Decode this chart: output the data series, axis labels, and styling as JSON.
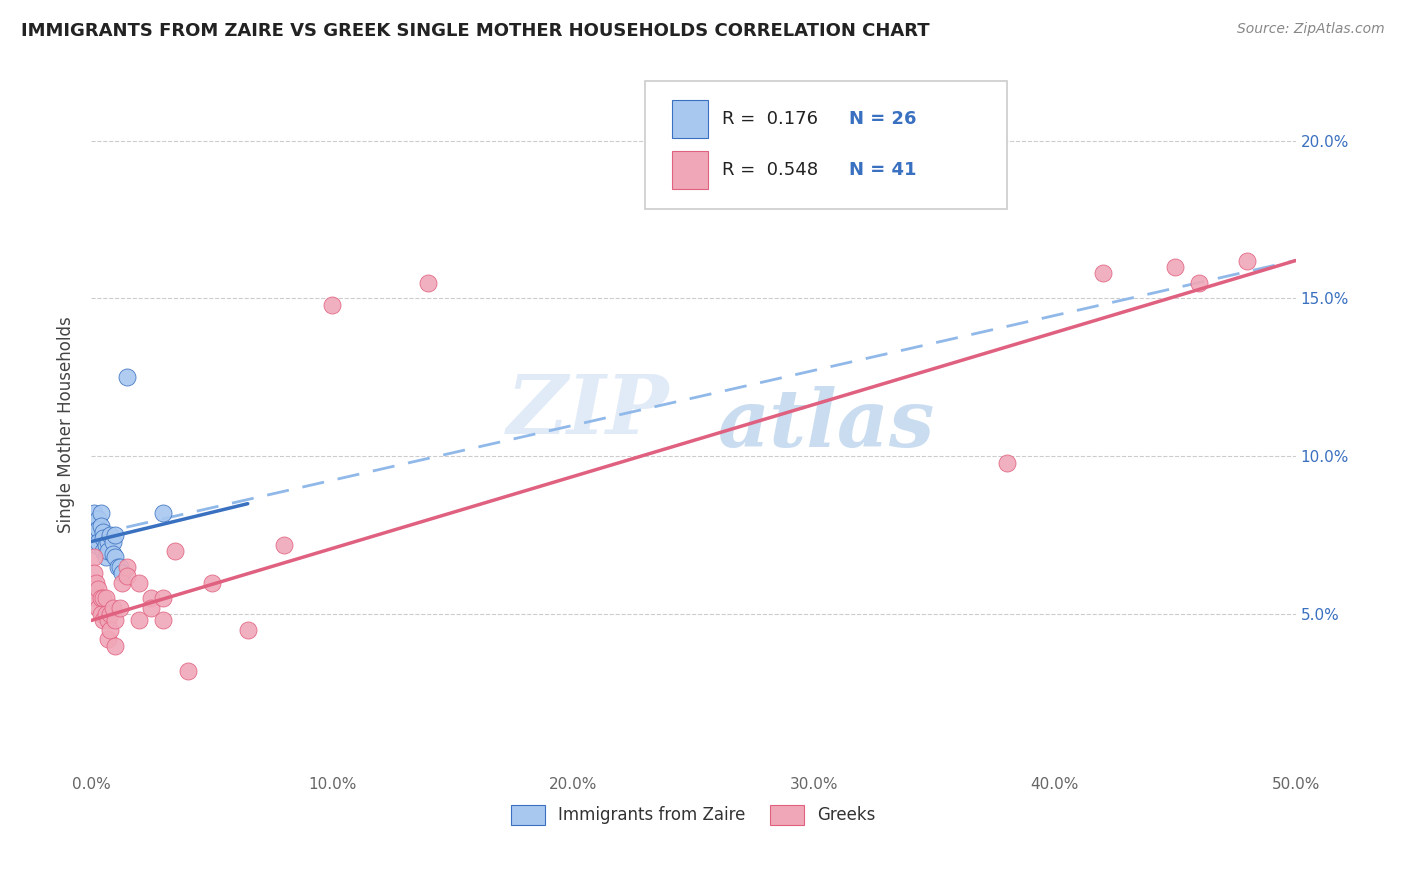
{
  "title": "IMMIGRANTS FROM ZAIRE VS GREEK SINGLE MOTHER HOUSEHOLDS CORRELATION CHART",
  "source": "Source: ZipAtlas.com",
  "ylabel": "Single Mother Households",
  "legend_r1": "R =  0.176",
  "legend_n1": "N = 26",
  "legend_r2": "R =  0.548",
  "legend_n2": "N = 41",
  "color_blue": "#a8c8f0",
  "color_pink": "#f0a8b8",
  "color_line_blue": "#3a70c0",
  "color_line_pink": "#e06080",
  "color_dashed": "#90b8e8",
  "watermark_zip": "ZIP",
  "watermark_atlas": "atlas",
  "xmin": 0.0,
  "xmax": 0.5,
  "ymin": 0.0,
  "ymax": 0.22,
  "blue_points_x": [
    0.001,
    0.001,
    0.002,
    0.002,
    0.003,
    0.003,
    0.003,
    0.004,
    0.004,
    0.005,
    0.005,
    0.005,
    0.006,
    0.006,
    0.007,
    0.007,
    0.008,
    0.009,
    0.009,
    0.01,
    0.01,
    0.011,
    0.012,
    0.013,
    0.015,
    0.03
  ],
  "blue_points_y": [
    0.082,
    0.078,
    0.075,
    0.072,
    0.08,
    0.077,
    0.073,
    0.082,
    0.078,
    0.076,
    0.074,
    0.07,
    0.072,
    0.068,
    0.073,
    0.07,
    0.075,
    0.073,
    0.069,
    0.075,
    0.068,
    0.065,
    0.065,
    0.063,
    0.125,
    0.082
  ],
  "pink_points_x": [
    0.001,
    0.001,
    0.002,
    0.002,
    0.003,
    0.003,
    0.004,
    0.004,
    0.005,
    0.005,
    0.006,
    0.006,
    0.007,
    0.007,
    0.008,
    0.008,
    0.009,
    0.01,
    0.01,
    0.012,
    0.013,
    0.015,
    0.015,
    0.02,
    0.02,
    0.025,
    0.025,
    0.03,
    0.03,
    0.035,
    0.04,
    0.05,
    0.065,
    0.08,
    0.1,
    0.14,
    0.38,
    0.42,
    0.45,
    0.46,
    0.48
  ],
  "pink_points_y": [
    0.068,
    0.063,
    0.06,
    0.055,
    0.058,
    0.052,
    0.055,
    0.05,
    0.055,
    0.048,
    0.055,
    0.05,
    0.048,
    0.042,
    0.05,
    0.045,
    0.052,
    0.048,
    0.04,
    0.052,
    0.06,
    0.065,
    0.062,
    0.048,
    0.06,
    0.055,
    0.052,
    0.055,
    0.048,
    0.07,
    0.032,
    0.06,
    0.045,
    0.072,
    0.148,
    0.155,
    0.098,
    0.158,
    0.16,
    0.155,
    0.162
  ],
  "blue_line_x0": 0.0,
  "blue_line_y0": 0.073,
  "blue_line_x1": 0.065,
  "blue_line_y1": 0.085,
  "dash_line_x0": 0.0,
  "dash_line_y0": 0.075,
  "dash_line_x1": 0.5,
  "dash_line_y1": 0.162,
  "pink_line_x0": 0.0,
  "pink_line_y0": 0.048,
  "pink_line_x1": 0.5,
  "pink_line_y1": 0.162
}
